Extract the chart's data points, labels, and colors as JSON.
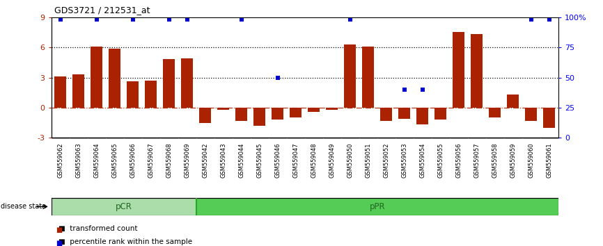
{
  "title": "GDS3721 / 212531_at",
  "samples": [
    "GSM559062",
    "GSM559063",
    "GSM559064",
    "GSM559065",
    "GSM559066",
    "GSM559067",
    "GSM559068",
    "GSM559069",
    "GSM559042",
    "GSM559043",
    "GSM559044",
    "GSM559045",
    "GSM559046",
    "GSM559047",
    "GSM559048",
    "GSM559049",
    "GSM559050",
    "GSM559051",
    "GSM559052",
    "GSM559053",
    "GSM559054",
    "GSM559055",
    "GSM559056",
    "GSM559057",
    "GSM559058",
    "GSM559059",
    "GSM559060",
    "GSM559061"
  ],
  "transformed_count": [
    3.1,
    3.3,
    6.1,
    5.9,
    2.6,
    2.7,
    4.8,
    4.9,
    -1.5,
    -0.2,
    -1.3,
    -1.8,
    -1.2,
    -1.0,
    -0.4,
    -0.2,
    6.3,
    6.1,
    -1.3,
    -1.1,
    -1.7,
    -1.2,
    7.5,
    7.3,
    -1.0,
    1.3,
    -1.3,
    -2.0
  ],
  "percentile_pct": [
    98,
    null,
    98,
    null,
    98,
    null,
    98,
    98,
    null,
    null,
    98,
    null,
    50,
    null,
    null,
    null,
    98,
    null,
    null,
    40,
    40,
    null,
    null,
    null,
    null,
    null,
    98,
    98
  ],
  "pcr_count": 8,
  "ppr_count": 20,
  "bar_color": "#AA2200",
  "dot_color": "#0000CC",
  "background_color": "#ffffff",
  "tick_bg_color": "#CCCCCC",
  "group_pcr_color": "#AADDAA",
  "group_ppr_color": "#55CC55",
  "group_divider_color": "#22AA22",
  "ylim_left": [
    -3,
    9
  ],
  "ylim_right": [
    0,
    100
  ],
  "yticks_left": [
    -3,
    0,
    3,
    6,
    9
  ],
  "yticks_right": [
    0,
    25,
    50,
    75,
    100
  ],
  "ytick_labels_right": [
    "0",
    "25",
    "50",
    "75",
    "100%"
  ],
  "hlines_dotted": [
    3,
    6
  ],
  "hline_zero_color": "#AA2200"
}
